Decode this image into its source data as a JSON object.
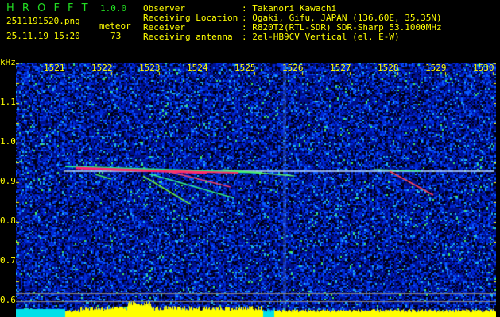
{
  "app": {
    "name": "H R O F F T",
    "version": "1.0.0"
  },
  "file": {
    "name": "2511191520.png",
    "datetime": "25.11.19 15:20"
  },
  "meteor": {
    "label": "meteor",
    "count": "73"
  },
  "info": [
    {
      "label": "Observer",
      "value": ": Takanori Kawachi"
    },
    {
      "label": "Receiving Location",
      "value": ": Ogaki, Gifu, JAPAN (136.60E, 35.35N)"
    },
    {
      "label": "Receiver",
      "value": ": R820T2(RTL-SDR) SDR-Sharp 53.1000MHz"
    },
    {
      "label": "Receiving antenna",
      "value": ": 2el-HB9CV Vertical (el. E-W)"
    }
  ],
  "axis": {
    "y_unit": "kHz",
    "x_ticks": [
      "1521",
      "1522",
      "1523",
      "1524",
      "1525",
      "1526",
      "1527",
      "1528",
      "1529",
      "1530"
    ],
    "y_ticks": [
      "1.1",
      "1.0",
      "0.9",
      "0.8",
      "0.7",
      "0.6"
    ]
  },
  "colors": {
    "text": "#ffff00",
    "logo": "#22dd22",
    "background": "#000000"
  }
}
